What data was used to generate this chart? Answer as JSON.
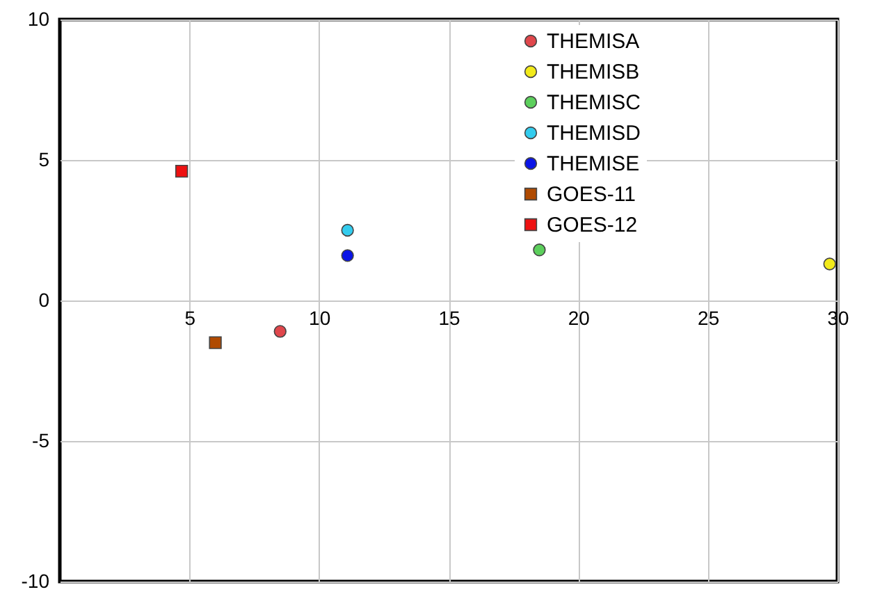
{
  "chart_data": {
    "type": "scatter",
    "xlim": [
      0,
      30
    ],
    "ylim": [
      -10,
      10
    ],
    "xticks": [
      5,
      10,
      15,
      20,
      25,
      30
    ],
    "yticks": [
      -10,
      -5,
      0,
      5,
      10
    ],
    "grid": true,
    "legend": "top right",
    "series": [
      {
        "name": "THEMISA",
        "color": "#e0474c",
        "marker": "circle",
        "x": [
          8.5
        ],
        "values": [
          -1.1
        ]
      },
      {
        "name": "THEMISB",
        "color": "#f2ea1a",
        "marker": "circle",
        "x": [
          29.7
        ],
        "values": [
          1.3
        ]
      },
      {
        "name": "THEMISC",
        "color": "#5ccf5c",
        "marker": "circle",
        "x": [
          18.5
        ],
        "values": [
          1.8
        ]
      },
      {
        "name": "THEMISD",
        "color": "#33ccee",
        "marker": "circle",
        "x": [
          11.1
        ],
        "values": [
          2.5
        ]
      },
      {
        "name": "THEMISE",
        "color": "#0a14e6",
        "marker": "circle",
        "x": [
          11.1
        ],
        "values": [
          1.6
        ]
      },
      {
        "name": "GOES-11",
        "color": "#b04a00",
        "marker": "square",
        "x": [
          6.0
        ],
        "values": [
          -1.5
        ]
      },
      {
        "name": "GOES-12",
        "color": "#ee1111",
        "marker": "square",
        "x": [
          4.7
        ],
        "values": [
          4.6
        ]
      }
    ]
  }
}
